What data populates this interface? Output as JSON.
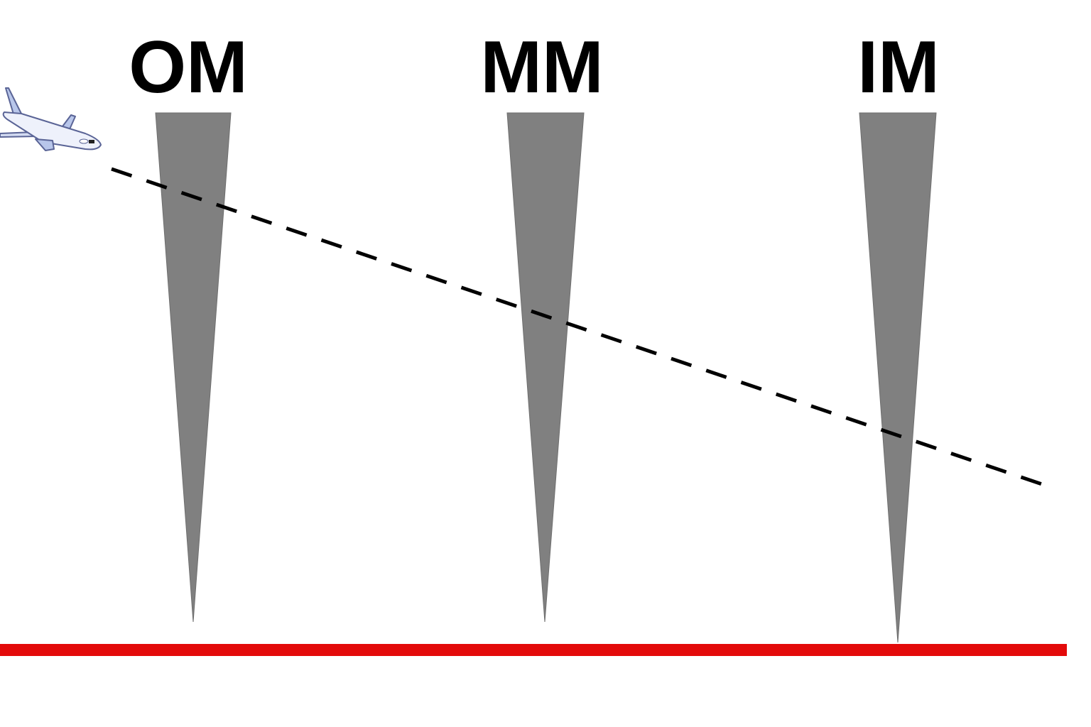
{
  "markers": [
    {
      "label": "OM"
    },
    {
      "label": "MM"
    },
    {
      "label": "IM"
    }
  ],
  "colors": {
    "cone": "#808080",
    "runway": "#e30a0a",
    "glide_path": "#000000",
    "aircraft": "#e6ebf8"
  },
  "icons": {
    "aircraft": "airplane-icon"
  }
}
